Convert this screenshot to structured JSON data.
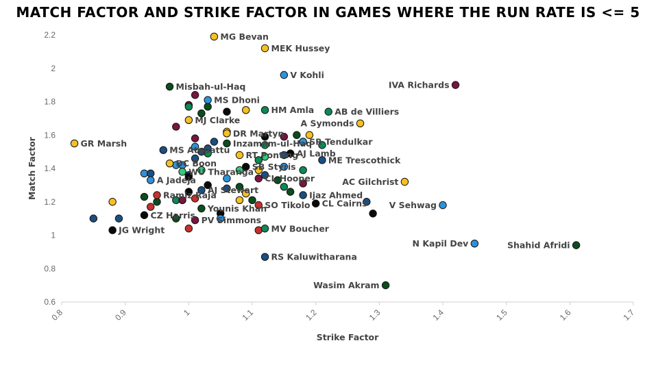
{
  "chart_data": {
    "type": "scatter",
    "title": "MATCH FACTOR AND STRIKE FACTOR IN GAMES WHERE THE RUN RATE IS <= 5",
    "xlabel": "Strike Factor",
    "ylabel": "Match Factor",
    "xlim": [
      0.8,
      1.7
    ],
    "ylim": [
      0.6,
      2.2
    ],
    "x_ticks": [
      "0.8",
      "0.9",
      "1",
      "1.1",
      "1.2",
      "1.3",
      "1.4",
      "1.5",
      "1.6",
      "1.7"
    ],
    "y_ticks": [
      "0.6",
      "0.8",
      "1",
      "1.2",
      "1.4",
      "1.6",
      "1.8",
      "2",
      "2.2"
    ],
    "grid": false,
    "legend": "none",
    "colors": {
      "yellow": "#F5C022",
      "green": "#0C8A55",
      "darkgreen": "#0B4D1E",
      "blue": "#2E92D9",
      "navy": "#1B4F82",
      "red": "#C9302C",
      "maroon": "#7A1440",
      "black": "#0A0A0A",
      "lime": "#35C97A"
    },
    "labeled_points": [
      {
        "label": "MG Bevan",
        "x": 1.04,
        "y": 2.19,
        "color": "yellow",
        "side": "right"
      },
      {
        "label": "MEK Hussey",
        "x": 1.12,
        "y": 2.12,
        "color": "yellow",
        "side": "right"
      },
      {
        "label": "V Kohli",
        "x": 1.15,
        "y": 1.96,
        "color": "blue",
        "side": "right"
      },
      {
        "label": "IVA Richards",
        "x": 1.42,
        "y": 1.9,
        "color": "maroon",
        "side": "left"
      },
      {
        "label": "Misbah-ul-Haq",
        "x": 0.97,
        "y": 1.89,
        "color": "darkgreen",
        "side": "right"
      },
      {
        "label": "MS Dhoni",
        "x": 1.03,
        "y": 1.81,
        "color": "blue",
        "side": "right"
      },
      {
        "label": "HM Amla",
        "x": 1.12,
        "y": 1.75,
        "color": "green",
        "side": "right"
      },
      {
        "label": "AB de Villiers",
        "x": 1.22,
        "y": 1.74,
        "color": "green",
        "side": "right"
      },
      {
        "label": "MJ Clarke",
        "x": 1.0,
        "y": 1.69,
        "color": "yellow",
        "side": "right"
      },
      {
        "label": "A Symonds",
        "x": 1.27,
        "y": 1.67,
        "color": "yellow",
        "side": "left"
      },
      {
        "label": "DR Martyn",
        "x": 1.06,
        "y": 1.61,
        "color": "yellow",
        "side": "right"
      },
      {
        "label": "SR Tendulkar",
        "x": 1.18,
        "y": 1.56,
        "color": "blue",
        "side": "right"
      },
      {
        "label": "GR Marsh",
        "x": 0.82,
        "y": 1.55,
        "color": "yellow",
        "side": "right"
      },
      {
        "label": "Inzamam-ul-Haq",
        "x": 1.06,
        "y": 1.55,
        "color": "darkgreen",
        "side": "right"
      },
      {
        "label": "MS Atapattu",
        "x": 0.96,
        "y": 1.51,
        "color": "navy",
        "side": "right"
      },
      {
        "label": "RT Ponting",
        "x": 1.08,
        "y": 1.48,
        "color": "yellow",
        "side": "right"
      },
      {
        "label": "AJ Lamb",
        "x": 1.16,
        "y": 1.49,
        "color": "black",
        "side": "right"
      },
      {
        "label": "ME Trescothick",
        "x": 1.21,
        "y": 1.45,
        "color": "navy",
        "side": "right"
      },
      {
        "label": "DC Boon",
        "x": 0.97,
        "y": 1.43,
        "color": "yellow",
        "side": "right"
      },
      {
        "label": "SB Styris",
        "x": 1.09,
        "y": 1.41,
        "color": "black",
        "side": "right"
      },
      {
        "label": "WU Tharanga",
        "x": 0.99,
        "y": 1.38,
        "color": "lime",
        "side": "right"
      },
      {
        "label": "A Jadeja",
        "x": 0.94,
        "y": 1.33,
        "color": "blue",
        "side": "right"
      },
      {
        "label": "CL Hooper",
        "x": 1.11,
        "y": 1.34,
        "color": "maroon",
        "side": "right"
      },
      {
        "label": "AC Gilchrist",
        "x": 1.34,
        "y": 1.32,
        "color": "yellow",
        "side": "left"
      },
      {
        "label": "AJ Stewart",
        "x": 1.02,
        "y": 1.27,
        "color": "navy",
        "side": "right"
      },
      {
        "label": "Ijaz Ahmed",
        "x": 1.18,
        "y": 1.24,
        "color": "navy",
        "side": "right"
      },
      {
        "label": "Ramiz Raja",
        "x": 0.95,
        "y": 1.24,
        "color": "red",
        "side": "right"
      },
      {
        "label": "CL Cairns",
        "x": 1.2,
        "y": 1.19,
        "color": "black",
        "side": "right"
      },
      {
        "label": "SO Tikolo",
        "x": 1.11,
        "y": 1.18,
        "color": "red",
        "side": "right"
      },
      {
        "label": "V Sehwag",
        "x": 1.4,
        "y": 1.18,
        "color": "blue",
        "side": "left"
      },
      {
        "label": "Younis Khan",
        "x": 1.02,
        "y": 1.16,
        "color": "darkgreen",
        "side": "right"
      },
      {
        "label": "CZ Harris",
        "x": 0.93,
        "y": 1.12,
        "color": "black",
        "side": "right"
      },
      {
        "label": "PV Simmons",
        "x": 1.01,
        "y": 1.09,
        "color": "maroon",
        "side": "right"
      },
      {
        "label": "JG Wright",
        "x": 0.88,
        "y": 1.03,
        "color": "black",
        "side": "right"
      },
      {
        "label": "MV Boucher",
        "x": 1.12,
        "y": 1.04,
        "color": "green",
        "side": "right"
      },
      {
        "label": "N Kapil Dev",
        "x": 1.45,
        "y": 0.95,
        "color": "blue",
        "side": "left"
      },
      {
        "label": "Shahid Afridi",
        "x": 1.61,
        "y": 0.94,
        "color": "darkgreen",
        "side": "left"
      },
      {
        "label": "RS Kaluwitharana",
        "x": 1.12,
        "y": 0.87,
        "color": "navy",
        "side": "right"
      },
      {
        "label": "Wasim Akram",
        "x": 1.31,
        "y": 0.7,
        "color": "darkgreen",
        "side": "left"
      }
    ],
    "unlabeled_points": [
      {
        "x": 1.01,
        "y": 1.84,
        "color": "maroon"
      },
      {
        "x": 1.0,
        "y": 1.78,
        "color": "maroon"
      },
      {
        "x": 1.0,
        "y": 1.77,
        "color": "green"
      },
      {
        "x": 1.03,
        "y": 1.77,
        "color": "darkgreen"
      },
      {
        "x": 1.02,
        "y": 1.73,
        "color": "darkgreen"
      },
      {
        "x": 1.06,
        "y": 1.74,
        "color": "black"
      },
      {
        "x": 1.09,
        "y": 1.75,
        "color": "yellow"
      },
      {
        "x": 0.98,
        "y": 1.65,
        "color": "maroon"
      },
      {
        "x": 1.06,
        "y": 1.62,
        "color": "yellow"
      },
      {
        "x": 1.12,
        "y": 1.59,
        "color": "black"
      },
      {
        "x": 1.15,
        "y": 1.59,
        "color": "maroon"
      },
      {
        "x": 1.17,
        "y": 1.6,
        "color": "darkgreen"
      },
      {
        "x": 1.19,
        "y": 1.6,
        "color": "yellow"
      },
      {
        "x": 1.18,
        "y": 1.56,
        "color": "blue"
      },
      {
        "x": 1.21,
        "y": 1.54,
        "color": "green"
      },
      {
        "x": 1.01,
        "y": 1.58,
        "color": "maroon"
      },
      {
        "x": 1.04,
        "y": 1.56,
        "color": "navy"
      },
      {
        "x": 1.12,
        "y": 1.54,
        "color": "green"
      },
      {
        "x": 1.01,
        "y": 1.53,
        "color": "blue"
      },
      {
        "x": 1.03,
        "y": 1.52,
        "color": "navy"
      },
      {
        "x": 1.02,
        "y": 1.5,
        "color": "navy"
      },
      {
        "x": 1.03,
        "y": 1.49,
        "color": "green"
      },
      {
        "x": 1.01,
        "y": 1.46,
        "color": "navy"
      },
      {
        "x": 1.12,
        "y": 1.47,
        "color": "lime"
      },
      {
        "x": 1.11,
        "y": 1.45,
        "color": "green"
      },
      {
        "x": 1.15,
        "y": 1.48,
        "color": "navy"
      },
      {
        "x": 1.15,
        "y": 1.41,
        "color": "blue"
      },
      {
        "x": 0.98,
        "y": 1.42,
        "color": "blue"
      },
      {
        "x": 0.99,
        "y": 1.42,
        "color": "blue"
      },
      {
        "x": 1.02,
        "y": 1.39,
        "color": "lime"
      },
      {
        "x": 1.08,
        "y": 1.39,
        "color": "lime"
      },
      {
        "x": 1.11,
        "y": 1.39,
        "color": "yellow"
      },
      {
        "x": 1.18,
        "y": 1.39,
        "color": "green"
      },
      {
        "x": 0.93,
        "y": 1.37,
        "color": "blue"
      },
      {
        "x": 0.94,
        "y": 1.37,
        "color": "navy"
      },
      {
        "x": 1.0,
        "y": 1.36,
        "color": "navy"
      },
      {
        "x": 1.06,
        "y": 1.34,
        "color": "blue"
      },
      {
        "x": 1.12,
        "y": 1.36,
        "color": "navy"
      },
      {
        "x": 1.14,
        "y": 1.33,
        "color": "darkgreen"
      },
      {
        "x": 1.18,
        "y": 1.31,
        "color": "maroon"
      },
      {
        "x": 1.0,
        "y": 1.35,
        "color": "black"
      },
      {
        "x": 1.03,
        "y": 1.3,
        "color": "black"
      },
      {
        "x": 1.06,
        "y": 1.28,
        "color": "navy"
      },
      {
        "x": 1.08,
        "y": 1.29,
        "color": "darkgreen"
      },
      {
        "x": 1.15,
        "y": 1.29,
        "color": "green"
      },
      {
        "x": 1.16,
        "y": 1.26,
        "color": "darkgreen"
      },
      {
        "x": 1.0,
        "y": 1.26,
        "color": "black"
      },
      {
        "x": 1.09,
        "y": 1.25,
        "color": "yellow"
      },
      {
        "x": 0.93,
        "y": 1.23,
        "color": "darkgreen"
      },
      {
        "x": 0.95,
        "y": 1.2,
        "color": "darkgreen"
      },
      {
        "x": 0.98,
        "y": 1.21,
        "color": "green"
      },
      {
        "x": 0.99,
        "y": 1.21,
        "color": "maroon"
      },
      {
        "x": 1.01,
        "y": 1.22,
        "color": "red"
      },
      {
        "x": 1.08,
        "y": 1.21,
        "color": "yellow"
      },
      {
        "x": 1.1,
        "y": 1.21,
        "color": "darkgreen"
      },
      {
        "x": 0.88,
        "y": 1.2,
        "color": "yellow"
      },
      {
        "x": 0.94,
        "y": 1.17,
        "color": "red"
      },
      {
        "x": 1.28,
        "y": 1.2,
        "color": "navy"
      },
      {
        "x": 1.29,
        "y": 1.13,
        "color": "black"
      },
      {
        "x": 1.05,
        "y": 1.13,
        "color": "black"
      },
      {
        "x": 1.05,
        "y": 1.1,
        "color": "blue"
      },
      {
        "x": 0.85,
        "y": 1.1,
        "color": "navy"
      },
      {
        "x": 0.89,
        "y": 1.1,
        "color": "navy"
      },
      {
        "x": 0.98,
        "y": 1.1,
        "color": "darkgreen"
      },
      {
        "x": 1.0,
        "y": 1.04,
        "color": "red"
      },
      {
        "x": 1.11,
        "y": 1.03,
        "color": "red"
      }
    ]
  }
}
